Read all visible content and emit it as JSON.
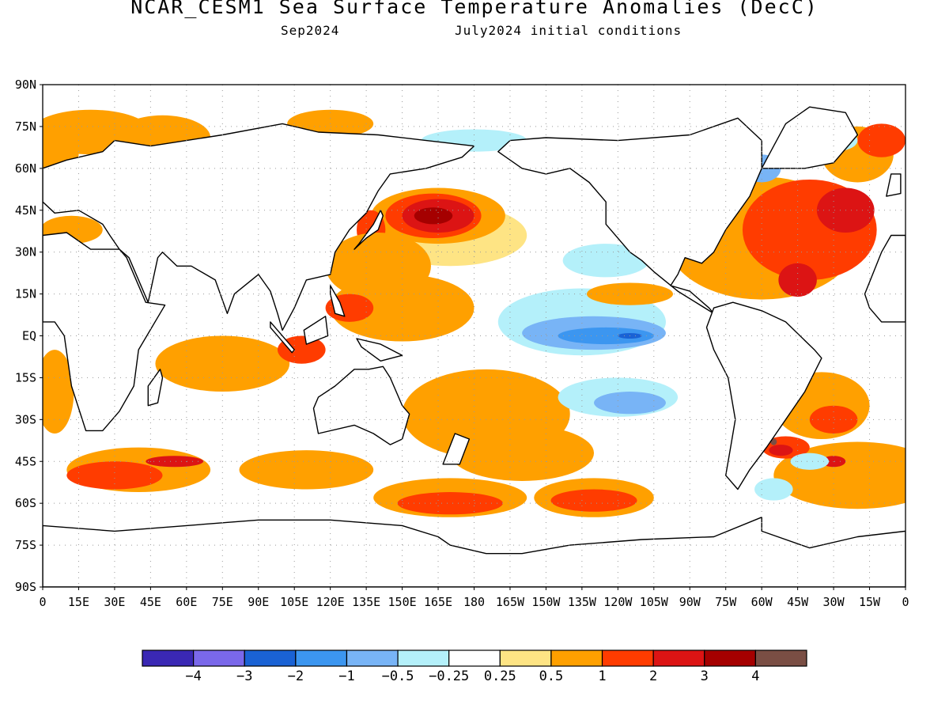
{
  "title": "NCAR_CESM1 Sea Surface Temperature Anomalies (DecC)",
  "subtitle_left": "Sep2024",
  "subtitle_right": "July2024 initial conditions",
  "map": {
    "lat_labels": [
      "90N",
      "75N",
      "60N",
      "45N",
      "30N",
      "15N",
      "EQ",
      "15S",
      "30S",
      "45S",
      "60S",
      "75S",
      "90S"
    ],
    "lon_labels": [
      "0",
      "15E",
      "30E",
      "45E",
      "60E",
      "75E",
      "90E",
      "105E",
      "120E",
      "135E",
      "150E",
      "165E",
      "180",
      "165W",
      "150W",
      "135W",
      "120W",
      "105W",
      "90W",
      "75W",
      "60W",
      "45W",
      "30W",
      "15W",
      "0"
    ],
    "anomalies": [
      {
        "level": "0.5",
        "lon": 20,
        "lat": 73,
        "rx": 25,
        "ry": 8
      },
      {
        "level": "0.5",
        "lon": 50,
        "lat": 71,
        "rx": 20,
        "ry": 8
      },
      {
        "level": "0.5",
        "lon": 5,
        "lat": 65,
        "rx": 10,
        "ry": 12
      },
      {
        "level": "0.5",
        "lon": 12,
        "lat": 38,
        "rx": 13,
        "ry": 5
      },
      {
        "level": "0.5",
        "lon": 120,
        "lat": 76,
        "rx": 18,
        "ry": 5
      },
      {
        "level": "0.25",
        "lon": 170,
        "lat": 36,
        "rx": 32,
        "ry": 11
      },
      {
        "level": "0.5",
        "lon": 165,
        "lat": 43,
        "rx": 28,
        "ry": 10
      },
      {
        "level": "1",
        "lon": 163,
        "lat": 43,
        "rx": 20,
        "ry": 8
      },
      {
        "level": "2",
        "lon": 165,
        "lat": 43,
        "rx": 15,
        "ry": 6
      },
      {
        "level": "3",
        "lon": 163,
        "lat": 43,
        "rx": 8,
        "ry": 3
      },
      {
        "level": "1",
        "lon": 137,
        "lat": 38,
        "rx": 6,
        "ry": 7
      },
      {
        "level": "0.5",
        "lon": 140,
        "lat": 25,
        "rx": 22,
        "ry": 12
      },
      {
        "level": "0.5",
        "lon": 150,
        "lat": 10,
        "rx": 30,
        "ry": 12
      },
      {
        "level": "1",
        "lon": 128,
        "lat": 10,
        "rx": 10,
        "ry": 5
      },
      {
        "level": "0.5",
        "lon": 75,
        "lat": -10,
        "rx": 28,
        "ry": 10
      },
      {
        "level": "1",
        "lon": 108,
        "lat": -5,
        "rx": 10,
        "ry": 5
      },
      {
        "level": "0.5",
        "lon": 185,
        "lat": -28,
        "rx": 35,
        "ry": 16
      },
      {
        "level": "0.5",
        "lon": 200,
        "lat": -42,
        "rx": 30,
        "ry": 10
      },
      {
        "level": "0.5",
        "lon": 40,
        "lat": -48,
        "rx": 30,
        "ry": 8
      },
      {
        "level": "1",
        "lon": 30,
        "lat": -50,
        "rx": 20,
        "ry": 5
      },
      {
        "level": "2",
        "lon": 55,
        "lat": -45,
        "rx": 12,
        "ry": 2
      },
      {
        "level": "0.5",
        "lon": 110,
        "lat": -48,
        "rx": 28,
        "ry": 7
      },
      {
        "level": "0.5",
        "lon": 170,
        "lat": -58,
        "rx": 32,
        "ry": 7
      },
      {
        "level": "1",
        "lon": 170,
        "lat": -60,
        "rx": 22,
        "ry": 4
      },
      {
        "level": "0.5",
        "lon": 230,
        "lat": -58,
        "rx": 25,
        "ry": 7
      },
      {
        "level": "1",
        "lon": 230,
        "lat": -59,
        "rx": 18,
        "ry": 4
      },
      {
        "level": "-0.25",
        "lon": 225,
        "lat": 5,
        "rx": 35,
        "ry": 12
      },
      {
        "level": "-0.5",
        "lon": 230,
        "lat": 1,
        "rx": 30,
        "ry": 6
      },
      {
        "level": "-1",
        "lon": 235,
        "lat": 0,
        "rx": 20,
        "ry": 3
      },
      {
        "level": "-2",
        "lon": 245,
        "lat": 0,
        "rx": 5,
        "ry": 1
      },
      {
        "level": "-0.25",
        "lon": 240,
        "lat": -22,
        "rx": 25,
        "ry": 7
      },
      {
        "level": "-0.5",
        "lon": 245,
        "lat": -24,
        "rx": 15,
        "ry": 4
      },
      {
        "level": "-0.25",
        "lon": 235,
        "lat": 27,
        "rx": 18,
        "ry": 6
      },
      {
        "level": "-0.25",
        "lon": 180,
        "lat": 70,
        "rx": 22,
        "ry": 4
      },
      {
        "level": "0.5",
        "lon": 245,
        "lat": 15,
        "rx": 18,
        "ry": 4
      },
      {
        "level": "0.5",
        "lon": 300,
        "lat": 35,
        "rx": 40,
        "ry": 22
      },
      {
        "level": "1",
        "lon": 320,
        "lat": 38,
        "rx": 28,
        "ry": 18
      },
      {
        "level": "2",
        "lon": 335,
        "lat": 45,
        "rx": 12,
        "ry": 8
      },
      {
        "level": "2",
        "lon": 315,
        "lat": 20,
        "rx": 8,
        "ry": 6
      },
      {
        "level": "0.5",
        "lon": 340,
        "lat": 65,
        "rx": 15,
        "ry": 10
      },
      {
        "level": "1",
        "lon": 350,
        "lat": 70,
        "rx": 10,
        "ry": 6
      },
      {
        "level": "-0.25",
        "lon": 330,
        "lat": 70,
        "rx": 10,
        "ry": 4
      },
      {
        "level": "-0.5",
        "lon": 300,
        "lat": 60,
        "rx": 8,
        "ry": 5
      },
      {
        "level": "0.5",
        "lon": 325,
        "lat": -25,
        "rx": 20,
        "ry": 12
      },
      {
        "level": "1",
        "lon": 330,
        "lat": -30,
        "rx": 10,
        "ry": 5
      },
      {
        "level": "0.5",
        "lon": 340,
        "lat": -50,
        "rx": 35,
        "ry": 12
      },
      {
        "level": "1",
        "lon": 310,
        "lat": -40,
        "rx": 10,
        "ry": 4
      },
      {
        "level": "2",
        "lon": 308,
        "lat": -41,
        "rx": 5,
        "ry": 2
      },
      {
        "level": "4",
        "lon": 305,
        "lat": -38,
        "rx": 1.3,
        "ry": 1.2
      },
      {
        "level": "2",
        "lon": 330,
        "lat": -45,
        "rx": 5,
        "ry": 2
      },
      {
        "level": "-0.25",
        "lon": 320,
        "lat": -45,
        "rx": 8,
        "ry": 3
      },
      {
        "level": "-0.25",
        "lon": 305,
        "lat": -55,
        "rx": 8,
        "ry": 4
      },
      {
        "level": "0.5",
        "lon": 5,
        "lat": -20,
        "rx": 8,
        "ry": 15
      }
    ],
    "land": [
      [
        [
          25,
          66
        ],
        [
          30,
          70
        ],
        [
          45,
          68
        ],
        [
          60,
          70
        ],
        [
          75,
          72
        ],
        [
          100,
          76
        ],
        [
          115,
          73
        ],
        [
          140,
          72
        ],
        [
          160,
          70
        ],
        [
          180,
          68
        ],
        [
          175,
          64
        ],
        [
          160,
          60
        ],
        [
          145,
          58
        ],
        [
          140,
          52
        ],
        [
          135,
          44
        ],
        [
          128,
          38
        ],
        [
          122,
          30
        ],
        [
          120,
          22
        ],
        [
          110,
          20
        ],
        [
          105,
          10
        ],
        [
          100,
          2
        ],
        [
          98,
          8
        ],
        [
          95,
          16
        ],
        [
          90,
          22
        ],
        [
          80,
          15
        ],
        [
          77,
          8
        ],
        [
          72,
          20
        ],
        [
          62,
          25
        ],
        [
          56,
          25
        ],
        [
          50,
          30
        ],
        [
          48,
          28
        ],
        [
          44,
          12
        ],
        [
          36,
          28
        ],
        [
          32,
          31
        ],
        [
          28,
          36
        ],
        [
          25,
          40
        ],
        [
          15,
          45
        ],
        [
          5,
          44
        ],
        [
          0,
          48
        ],
        [
          0,
          60
        ],
        [
          10,
          63
        ]
      ],
      [
        [
          0,
          36
        ],
        [
          10,
          37
        ],
        [
          20,
          31
        ],
        [
          32,
          31
        ],
        [
          35,
          28
        ],
        [
          43,
          12
        ],
        [
          51,
          11
        ],
        [
          40,
          -5
        ],
        [
          38,
          -18
        ],
        [
          32,
          -27
        ],
        [
          25,
          -34
        ],
        [
          18,
          -34
        ],
        [
          12,
          -18
        ],
        [
          9,
          0
        ],
        [
          5,
          5
        ],
        [
          0,
          5
        ]
      ],
      [
        [
          343,
          15
        ],
        [
          350,
          30
        ],
        [
          354,
          36
        ],
        [
          360,
          36
        ],
        [
          360,
          5
        ],
        [
          350,
          5
        ],
        [
          345,
          10
        ]
      ],
      [
        [
          115,
          -22
        ],
        [
          122,
          -18
        ],
        [
          130,
          -12
        ],
        [
          136,
          -12
        ],
        [
          142,
          -11
        ],
        [
          145,
          -15
        ],
        [
          150,
          -25
        ],
        [
          153,
          -28
        ],
        [
          150,
          -37
        ],
        [
          145,
          -39
        ],
        [
          138,
          -35
        ],
        [
          130,
          -32
        ],
        [
          115,
          -35
        ],
        [
          113,
          -26
        ]
      ],
      [
        [
          190,
          66
        ],
        [
          195,
          70
        ],
        [
          210,
          71
        ],
        [
          240,
          70
        ],
        [
          270,
          72
        ],
        [
          290,
          78
        ],
        [
          300,
          70
        ],
        [
          300,
          60
        ],
        [
          295,
          50
        ],
        [
          290,
          44
        ],
        [
          285,
          38
        ],
        [
          280,
          30
        ],
        [
          275,
          26
        ],
        [
          268,
          28
        ],
        [
          265,
          22
        ],
        [
          262,
          18
        ],
        [
          270,
          16
        ],
        [
          278,
          10
        ],
        [
          280,
          8
        ],
        [
          265,
          16
        ],
        [
          255,
          23
        ],
        [
          250,
          27
        ],
        [
          245,
          30
        ],
        [
          235,
          40
        ],
        [
          235,
          48
        ],
        [
          228,
          55
        ],
        [
          220,
          60
        ],
        [
          210,
          58
        ],
        [
          200,
          60
        ]
      ],
      [
        [
          280,
          10
        ],
        [
          288,
          12
        ],
        [
          300,
          9
        ],
        [
          310,
          5
        ],
        [
          322,
          -5
        ],
        [
          325,
          -8
        ],
        [
          318,
          -20
        ],
        [
          310,
          -30
        ],
        [
          302,
          -40
        ],
        [
          295,
          -48
        ],
        [
          290,
          -55
        ],
        [
          285,
          -50
        ],
        [
          287,
          -40
        ],
        [
          289,
          -30
        ],
        [
          286,
          -15
        ],
        [
          280,
          -5
        ],
        [
          277,
          3
        ]
      ],
      [
        [
          300,
          60
        ],
        [
          305,
          68
        ],
        [
          310,
          76
        ],
        [
          320,
          82
        ],
        [
          335,
          80
        ],
        [
          340,
          72
        ],
        [
          330,
          62
        ],
        [
          318,
          60
        ]
      ],
      [
        [
          0,
          -68
        ],
        [
          30,
          -70
        ],
        [
          60,
          -68
        ],
        [
          90,
          -66
        ],
        [
          120,
          -66
        ],
        [
          150,
          -68
        ],
        [
          165,
          -72
        ],
        [
          170,
          -75
        ],
        [
          185,
          -78
        ],
        [
          200,
          -78
        ],
        [
          220,
          -75
        ],
        [
          250,
          -73
        ],
        [
          280,
          -72
        ],
        [
          300,
          -65
        ],
        [
          300,
          -70
        ],
        [
          320,
          -76
        ],
        [
          340,
          -72
        ],
        [
          360,
          -70
        ],
        [
          360,
          -90
        ],
        [
          0,
          -90
        ]
      ],
      [
        [
          44,
          -25
        ],
        [
          48,
          -24
        ],
        [
          50,
          -15
        ],
        [
          49,
          -12
        ],
        [
          44,
          -18
        ]
      ],
      [
        [
          130,
          31
        ],
        [
          135,
          35
        ],
        [
          140,
          38
        ],
        [
          142,
          43
        ],
        [
          141,
          45
        ],
        [
          138,
          40
        ],
        [
          132,
          33
        ]
      ],
      [
        [
          352,
          50
        ],
        [
          358,
          51
        ],
        [
          358,
          58
        ],
        [
          354,
          58
        ]
      ],
      [
        [
          172,
          -35
        ],
        [
          178,
          -37
        ],
        [
          174,
          -46
        ],
        [
          167,
          -46
        ]
      ],
      [
        [
          95,
          5
        ],
        [
          105,
          -5
        ],
        [
          104,
          -6
        ],
        [
          95,
          3
        ]
      ],
      [
        [
          109,
          2
        ],
        [
          118,
          7
        ],
        [
          119,
          0
        ],
        [
          110,
          -3
        ]
      ],
      [
        [
          131,
          -1
        ],
        [
          141,
          -3
        ],
        [
          150,
          -7
        ],
        [
          141,
          -9
        ],
        [
          133,
          -4
        ]
      ],
      [
        [
          120,
          18
        ],
        [
          124,
          12
        ],
        [
          126,
          7
        ],
        [
          122,
          8
        ],
        [
          120,
          15
        ]
      ]
    ]
  },
  "colorbar": {
    "colors": [
      "#3a28b4",
      "#7a68ea",
      "#1a62d4",
      "#3c96f0",
      "#78b4f6",
      "#b4f0fa",
      "#ffffff",
      "#fee484",
      "#ffa000",
      "#ff3c00",
      "#dc1414",
      "#a50000",
      "#7a4e44"
    ],
    "labels": [
      "−4",
      "−3",
      "−2",
      "−1",
      "−0.5",
      "−0.25",
      "0.25",
      "0.5",
      "1",
      "2",
      "3",
      "4"
    ]
  }
}
